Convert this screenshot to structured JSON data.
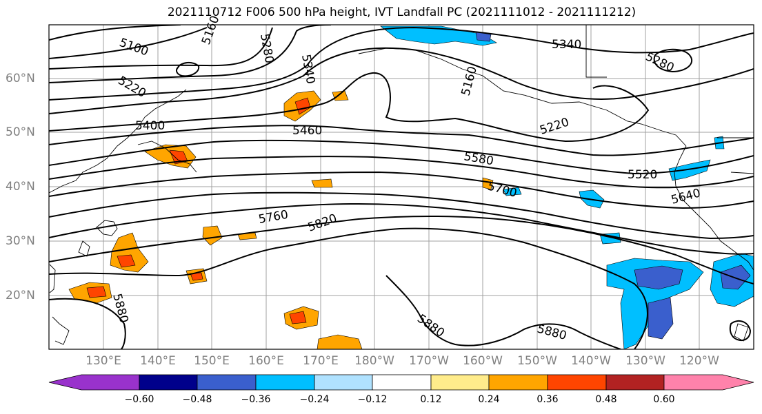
{
  "title": "2021110712 F006 500 hPa height, IVT Landfall PC (2021111012 - 2021111212)",
  "lat_labels": [
    "60°N",
    "50°N",
    "40°N",
    "30°N",
    "20°N"
  ],
  "lon_labels": [
    "130°E",
    "140°E",
    "150°E",
    "160°E",
    "170°E",
    "180°W",
    "170°W",
    "160°W",
    "150°W",
    "140°W",
    "130°W",
    "120°W"
  ],
  "contour_labels": [
    "5100",
    "5160",
    "5280",
    "5340",
    "5220",
    "5400",
    "5460",
    "5340",
    "5280",
    "5220",
    "5580",
    "5700",
    "5520",
    "5640",
    "5760",
    "5820",
    "5880",
    "5880",
    "5880",
    "5160"
  ],
  "colorbar": {
    "labels": [
      "−0.60",
      "−0.48",
      "−0.36",
      "−0.24",
      "−0.12",
      "0.12",
      "0.24",
      "0.36",
      "0.48",
      "0.60"
    ],
    "colors": [
      "#9932cc",
      "#00008b",
      "#3a5fcd",
      "#00bfff",
      "#b0e2ff",
      "#ffffff",
      "#ffec8b",
      "#ffa500",
      "#ff4500",
      "#b22222",
      "#ff82ab"
    ]
  },
  "chart_data": {
    "type": "map",
    "title": "2021110712 F006 500 hPa height, IVT Landfall PC (2021111012 - 2021111212)",
    "region": {
      "lon_range": [
        "120°E",
        "115°W"
      ],
      "lat_range": [
        "10°N",
        "70°N"
      ]
    },
    "contour_field": "500 hPa height (m)",
    "contour_levels_labeled": [
      5100,
      5160,
      5220,
      5280,
      5340,
      5400,
      5460,
      5520,
      5580,
      5640,
      5700,
      5760,
      5820,
      5880
    ],
    "shaded_field": "IVT Landfall PC",
    "shading_levels": [
      -0.6,
      -0.48,
      -0.36,
      -0.24,
      -0.12,
      0.12,
      0.24,
      0.36,
      0.48,
      0.6
    ],
    "grid": true
  }
}
